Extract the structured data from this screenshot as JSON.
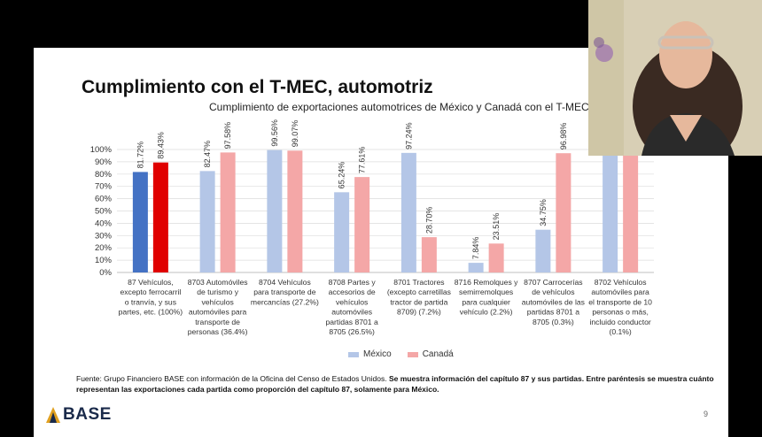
{
  "slide": {
    "title": "Cumplimiento con el T-MEC, automotriz",
    "page_number": "9",
    "brand": "BASE",
    "legend": [
      {
        "label": "México",
        "color": "#b4c6e7"
      },
      {
        "label": "Canadá",
        "color": "#f4a7a7"
      }
    ],
    "source_plain": "Fuente: Grupo Financiero BASE con información de la Oficina del Censo de Estados Unidos.",
    "source_bold": "Se muestra información del capítulo 87 y sus partidas. Entre paréntesis se muestra cuánto representan las exportaciones cada partida como proporción del capítulo 87, solamente para México."
  },
  "chart_data": {
    "type": "bar",
    "title": "Cumplimiento de exportaciones automotrices de México y Canadá con el T-MEC",
    "yticks": [
      "0%",
      "10%",
      "20%",
      "30%",
      "40%",
      "50%",
      "60%",
      "70%",
      "80%",
      "90%",
      "100%"
    ],
    "ylim": [
      0,
      100
    ],
    "categories": [
      [
        "87 Vehículos,",
        "excepto ferrocarril",
        "o tranvía, y sus",
        "partes, etc. (100%)"
      ],
      [
        "8703 Automóviles",
        "de turismo y",
        "vehículos",
        "automóviles para",
        "transporte de",
        "personas (36.4%)"
      ],
      [
        "8704 Vehículos",
        "para transporte de",
        "mercancías (27.2%)"
      ],
      [
        "8708 Partes y",
        "accesorios de",
        "vehículos",
        "automóviles",
        "partidas 8701 a",
        "8705 (26.5%)"
      ],
      [
        "8701 Tractores",
        "(excepto carretillas",
        "tractor de partida",
        "8709) (7.2%)"
      ],
      [
        "8716 Remolques y",
        "semirremolques",
        "para cualquier",
        "vehículo (2.2%)"
      ],
      [
        "8707 Carrocerías",
        "de vehículos",
        "automóviles de las",
        "partidas 8701 a",
        "8705 (0.3%)"
      ],
      [
        "8702 Vehículos",
        "automóviles para",
        "el transporte de 10",
        "personas o más,",
        "incluido conductor",
        "(0.1%)"
      ]
    ],
    "series": [
      {
        "name": "México",
        "color": "#b4c6e7",
        "highlight_color": "#4472c4",
        "values": [
          81.72,
          82.47,
          99.56,
          65.24,
          97.24,
          7.84,
          34.75,
          97.5
        ],
        "labels": [
          "81.72%",
          "82.47%",
          "99.56%",
          "65.24%",
          "97.24%",
          "7.84%",
          "34.75%",
          ""
        ]
      },
      {
        "name": "Canadá",
        "color": "#f4a7a7",
        "highlight_color": "#e00000",
        "values": [
          89.43,
          97.58,
          99.07,
          77.61,
          28.7,
          23.51,
          96.98,
          95.5
        ],
        "labels": [
          "89.43%",
          "97.58%",
          "99.07%",
          "77.61%",
          "28.70%",
          "23.51%",
          "96.98%",
          ""
        ]
      }
    ]
  }
}
